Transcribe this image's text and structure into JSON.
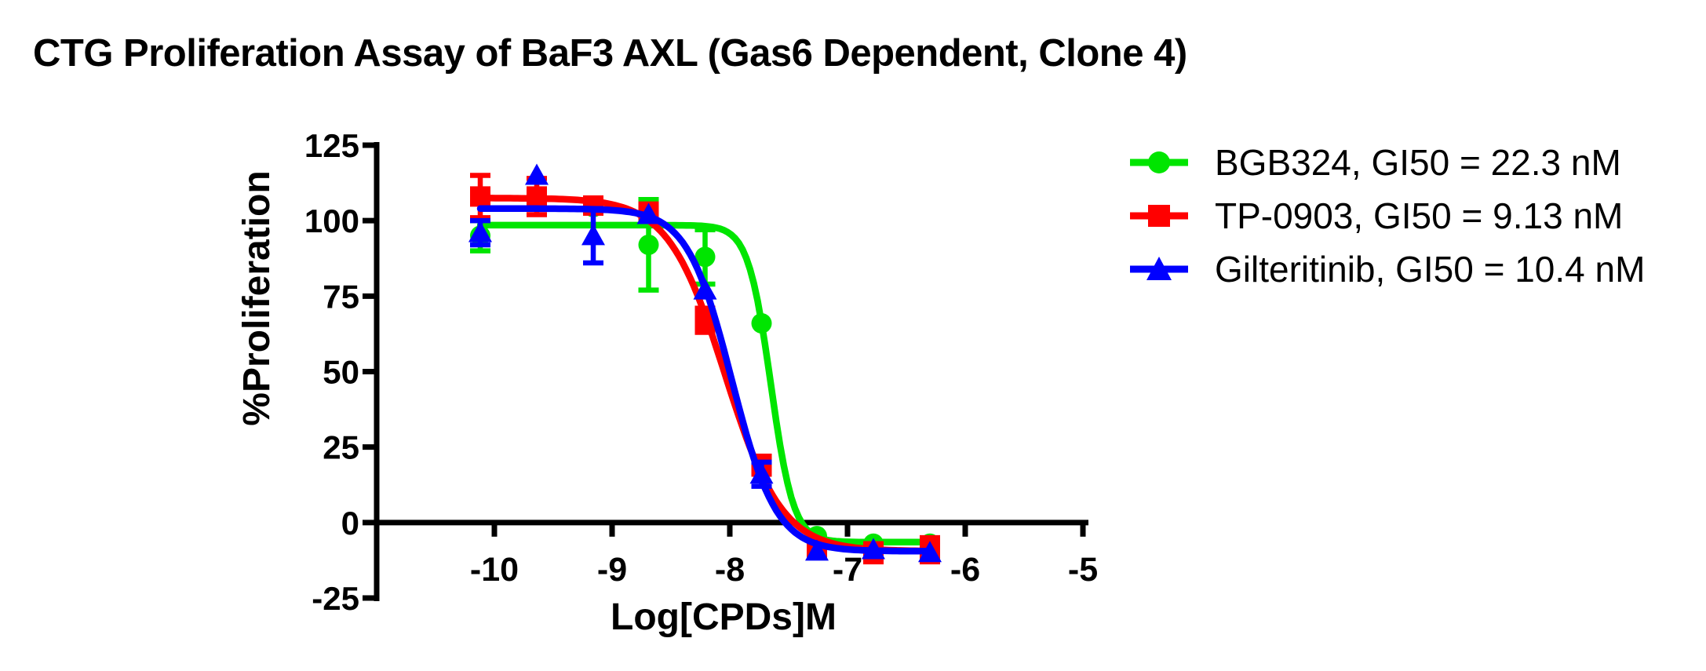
{
  "chart_data": {
    "type": "scatter",
    "title": "CTG Proliferation Assay of BaF3 AXL (Gas6 Dependent, Clone 4)",
    "xlabel": "Log[CPDs]M",
    "ylabel": "%Proliferation",
    "xlim": [
      -11,
      -5
    ],
    "ylim": [
      -25,
      125
    ],
    "x_ticks": [
      -10,
      -9,
      -8,
      -7,
      -6,
      -5
    ],
    "y_ticks": [
      125,
      100,
      75,
      50,
      25,
      0,
      -25
    ],
    "grid": false,
    "legend_position": "right",
    "axis_color": "#000000",
    "x": [
      -10.12,
      -9.64,
      -9.16,
      -8.69,
      -8.21,
      -7.73,
      -7.26,
      -6.78,
      -6.3
    ],
    "series": [
      {
        "name": "BGB324",
        "gi50": "22.3 nM",
        "label": "BGB324, GI50 = 22.3 nM",
        "color": "#00E500",
        "marker": "circle",
        "values": [
          95,
          108,
          104.5,
          92,
          88,
          66,
          -4.5,
          -7,
          -7
        ],
        "errors": [
          5,
          0,
          0,
          15,
          9,
          0,
          0,
          0,
          0
        ],
        "fit": {
          "top": 98.5,
          "bottom": -6.5,
          "log_gi50": -7.652,
          "hill": 4.5
        }
      },
      {
        "name": "TP-0903",
        "gi50": "9.13 nM",
        "label": "TP-0903, GI50 = 9.13 nM",
        "color": "#FF0000",
        "marker": "square",
        "values": [
          108,
          108,
          105,
          103,
          67,
          19,
          -9,
          -10,
          -9
        ],
        "errors": [
          7,
          6,
          0,
          0,
          4,
          3,
          2,
          3,
          4
        ],
        "fit": {
          "top": 107.5,
          "bottom": -9.5,
          "log_gi50": -8.04,
          "hill": 1.8
        }
      },
      {
        "name": "Gilteritinib",
        "gi50": "10.4 nM",
        "label": "Gilteritinib, GI50 = 10.4 nM",
        "color": "#0000FF",
        "marker": "triangle",
        "values": [
          96,
          115,
          95,
          102,
          77,
          16,
          -9.5,
          -9,
          -10
        ],
        "errors": [
          4,
          0,
          9,
          0,
          0,
          4,
          0,
          0,
          0
        ],
        "fit": {
          "top": 104,
          "bottom": -9.5,
          "log_gi50": -7.983,
          "hill": 2.3
        }
      }
    ]
  }
}
